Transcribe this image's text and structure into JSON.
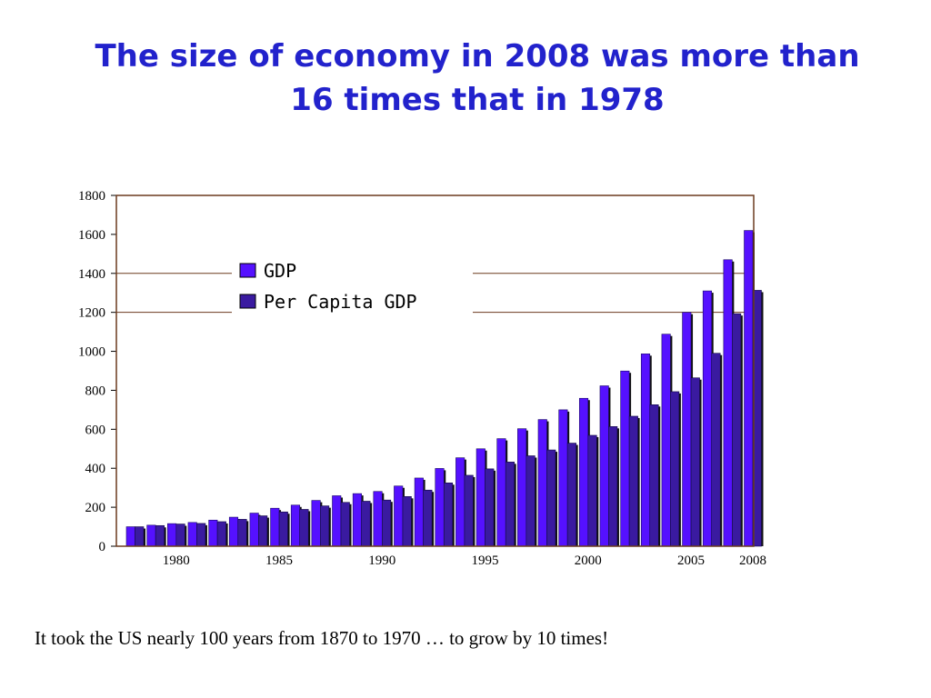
{
  "slide": {
    "title_line1": "The size of economy in 2008 was more than",
    "title_line2": "16 times that in 1978",
    "footnote": "It took the US nearly 100 years from 1870 to 1970 … to grow by 10 times!"
  },
  "colors": {
    "title": "#2222cc",
    "gdp": "#5511ff",
    "per_capita_gdp": "#3a1aa0",
    "frame": "#6b3a1f"
  },
  "chart_data": {
    "type": "bar",
    "title": "",
    "xlabel": "",
    "ylabel": "",
    "ylim": [
      0,
      1800
    ],
    "yticks": [
      0,
      200,
      400,
      600,
      800,
      1000,
      1200,
      1400,
      1600,
      1800
    ],
    "x": [
      1978,
      1979,
      1980,
      1981,
      1982,
      1983,
      1984,
      1985,
      1986,
      1987,
      1988,
      1989,
      1990,
      1991,
      1992,
      1993,
      1994,
      1995,
      1996,
      1997,
      1998,
      1999,
      2000,
      2001,
      2002,
      2003,
      2004,
      2005,
      2006,
      2007,
      2008
    ],
    "xtick_labels": [
      "1980",
      "1985",
      "1990",
      "1995",
      "2000",
      "2005",
      "2008"
    ],
    "xtick_years": [
      1980,
      1985,
      1990,
      1995,
      2000,
      2005,
      2008
    ],
    "grid": false,
    "legend_position": "top-left",
    "series": [
      {
        "name": "GDP",
        "values": [
          100,
          108,
          116,
          122,
          134,
          149,
          170,
          195,
          211,
          235,
          259,
          270,
          281,
          309,
          350,
          399,
          454,
          500,
          552,
          603,
          650,
          700,
          759,
          823,
          899,
          987,
          1088,
          1200,
          1310,
          1470,
          1620
        ]
      },
      {
        "name": "Per Capita GDP",
        "values": [
          100,
          106,
          114,
          117,
          126,
          138,
          156,
          176,
          189,
          207,
          225,
          231,
          237,
          255,
          288,
          325,
          364,
          397,
          432,
          464,
          494,
          529,
          569,
          614,
          667,
          726,
          793,
          864,
          990,
          1193,
          1313
        ]
      }
    ]
  }
}
